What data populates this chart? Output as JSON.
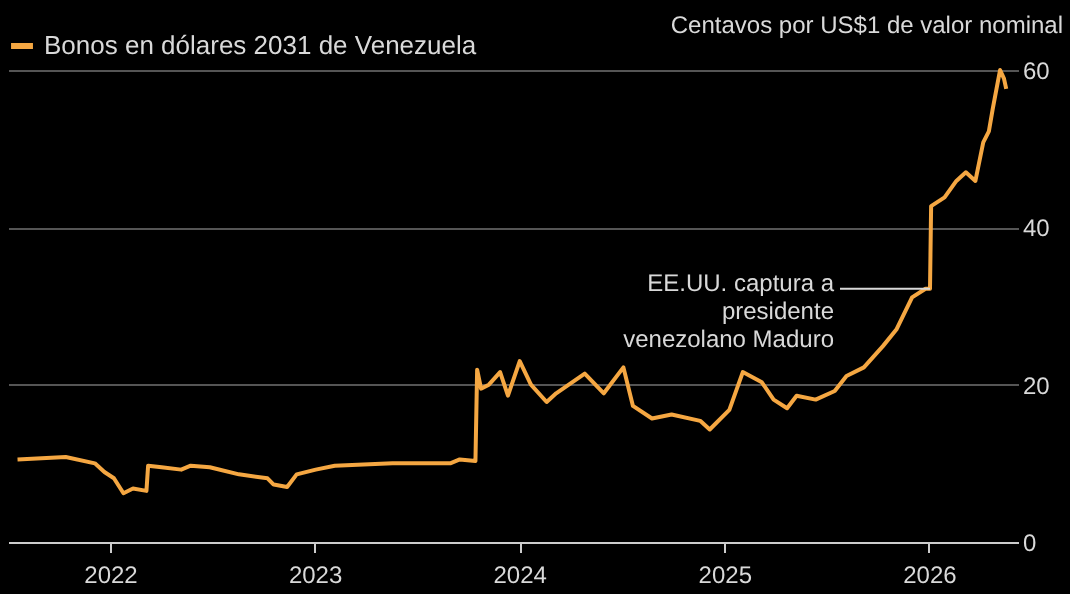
{
  "chart_data": {
    "type": "line",
    "ylabel": "Centavos por US$1 de valor nominal",
    "legend": "top left",
    "grid": "y",
    "line_style": "solid",
    "marker": "none",
    "xlim": [
      "2021-07-03",
      "2026-06-09"
    ],
    "xticks": [
      "2022",
      "2023",
      "2024",
      "2025",
      "2026"
    ],
    "ylim": [
      0,
      60
    ],
    "yticks": [
      0,
      20,
      40,
      60
    ],
    "annotations": [
      {
        "text": "EE.UU. captura a\npresidente\nvenezolano Maduro",
        "x": "2026-01-03",
        "y": 32.2
      }
    ],
    "series": [
      {
        "name": "Bonos en dólares 2031 de Venezuela",
        "color": "#f5a742",
        "x": [
          "2021-07-20",
          "2021-10-14",
          "2021-12-05",
          "2021-12-22",
          "2022-01-08",
          "2022-01-25",
          "2022-02-11",
          "2022-03-07",
          "2022-03-10",
          "2022-04-03",
          "2022-05-08",
          "2022-05-25",
          "2022-06-28",
          "2022-08-19",
          "2022-10-09",
          "2022-10-20",
          "2022-11-13",
          "2022-11-30",
          "2023-01-03",
          "2023-02-06",
          "2023-05-20",
          "2023-08-31",
          "2023-09-17",
          "2023-10-15",
          "2023-10-18",
          "2023-10-25",
          "2023-11-08",
          "2023-11-28",
          "2023-12-12",
          "2024-01-02",
          "2024-01-22",
          "2024-02-19",
          "2024-03-07",
          "2024-04-27",
          "2024-05-31",
          "2024-07-05",
          "2024-07-22",
          "2024-08-25",
          "2024-09-29",
          "2024-11-19",
          "2024-12-06",
          "2025-01-10",
          "2025-02-03",
          "2025-03-09",
          "2025-03-30",
          "2025-04-23",
          "2025-05-10",
          "2025-06-13",
          "2025-07-17",
          "2025-08-07",
          "2025-09-07",
          "2025-10-11",
          "2025-11-04",
          "2025-12-02",
          "2025-12-26",
          "2026-01-03",
          "2026-01-05",
          "2026-01-29",
          "2026-02-19",
          "2026-03-08",
          "2026-03-25",
          "2026-04-08",
          "2026-04-18",
          "2026-04-25",
          "2026-05-08",
          "2026-05-15",
          "2026-05-19"
        ],
        "values": [
          10.5,
          10.8,
          10.0,
          8.9,
          8.1,
          6.2,
          6.8,
          6.5,
          9.7,
          9.5,
          9.2,
          9.7,
          9.5,
          8.6,
          8.1,
          7.3,
          7.0,
          8.6,
          9.2,
          9.7,
          10.0,
          10.0,
          10.5,
          10.3,
          21.9,
          19.5,
          20.0,
          21.6,
          18.6,
          23.0,
          20.0,
          17.8,
          18.9,
          21.4,
          18.9,
          22.2,
          17.3,
          15.7,
          16.2,
          15.4,
          14.3,
          16.8,
          21.6,
          20.3,
          18.1,
          17.0,
          18.6,
          18.1,
          19.2,
          21.1,
          22.2,
          24.9,
          27.0,
          31.1,
          32.2,
          32.2,
          42.7,
          43.8,
          45.9,
          47.0,
          45.9,
          50.8,
          52.2,
          55.1,
          60.0,
          58.9,
          57.6
        ]
      }
    ]
  }
}
